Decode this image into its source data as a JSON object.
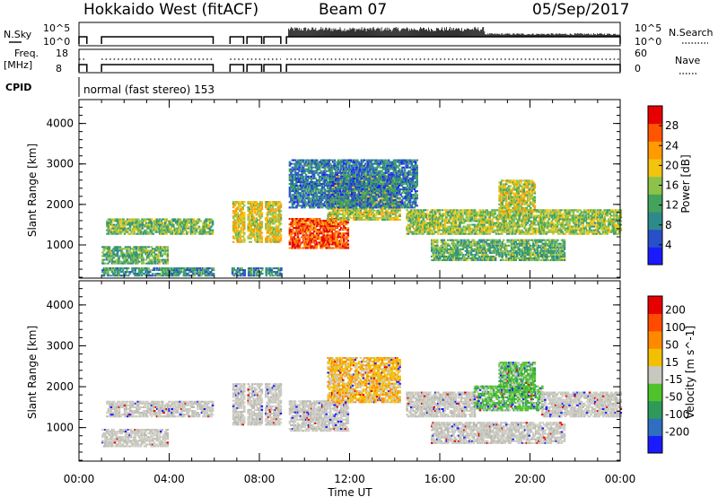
{
  "header": {
    "station": "Hokkaido West (fitACF)",
    "beam": "Beam 07",
    "date": "05/Sep/2017"
  },
  "status_panel": {
    "nsky_label": "N.Sky",
    "nsearch_label": "N.Search",
    "nsky_ticks": [
      "10^5",
      "10^0"
    ],
    "nsearch_ticks": [
      "10^5",
      "10^0"
    ],
    "freq_label": "Freq.",
    "freq_unit": "[MHz]",
    "freq_ticks": [
      "18",
      "8"
    ],
    "nave_label": "Nave",
    "nave_ticks": [
      "60",
      "0"
    ],
    "cpid_label": "CPID",
    "cpid_text": "normal (fast stereo) 153",
    "active_intervals_h": [
      [
        0.0,
        0.35
      ],
      [
        1.0,
        5.95
      ],
      [
        6.7,
        7.3
      ],
      [
        7.45,
        8.1
      ],
      [
        8.2,
        8.95
      ],
      [
        9.2,
        24.0
      ]
    ]
  },
  "chart_data": [
    {
      "type": "heatmap",
      "panel": "power",
      "ylabel": "Slant Range [km]",
      "xlabel": "Time UT",
      "x_ticks": [
        "00:00",
        "04:00",
        "08:00",
        "12:00",
        "16:00",
        "20:00",
        "00:00"
      ],
      "x_range_h": [
        0,
        24
      ],
      "y_ticks": [
        1000,
        2000,
        3000,
        4000
      ],
      "ylim": [
        180,
        4590
      ],
      "colorbar": {
        "label": "Power [dB]",
        "ticks": [
          4,
          8,
          12,
          16,
          20,
          24,
          28
        ],
        "range": [
          0,
          32
        ],
        "colors": [
          "#1a1aff",
          "#2850c8",
          "#2e8a8a",
          "#43a35a",
          "#8cc24a",
          "#f2c40f",
          "#ff9a00",
          "#ff5500",
          "#e60000"
        ]
      },
      "echo_bands": [
        {
          "t": [
            1.2,
            5.9
          ],
          "r": [
            1250,
            1650
          ],
          "level": 0.45
        },
        {
          "t": [
            0.4,
            3.9
          ],
          "r": [
            520,
            960
          ],
          "level": 0.4
        },
        {
          "t": [
            0.4,
            9.0
          ],
          "r": [
            220,
            420
          ],
          "level": 0.3
        },
        {
          "t": [
            6.8,
            8.9
          ],
          "r": [
            1050,
            2050
          ],
          "level": 0.6
        },
        {
          "t": [
            9.3,
            11.9
          ],
          "r": [
            900,
            1650
          ],
          "level": 0.85
        },
        {
          "t": [
            11.0,
            14.2
          ],
          "r": [
            1600,
            2700
          ],
          "level": 0.55
        },
        {
          "t": [
            14.5,
            24.0
          ],
          "r": [
            1250,
            1850
          ],
          "level": 0.5
        },
        {
          "t": [
            18.6,
            20.2
          ],
          "r": [
            1800,
            2600
          ],
          "level": 0.55
        },
        {
          "t": [
            15.6,
            21.5
          ],
          "r": [
            600,
            1100
          ],
          "level": 0.4
        },
        {
          "t": [
            9.3,
            15.0
          ],
          "r": [
            1900,
            3080
          ],
          "level": 0.25
        }
      ]
    },
    {
      "type": "heatmap",
      "panel": "velocity",
      "ylabel": "Slant Range [km]",
      "xlabel": "Time UT",
      "x_ticks": [
        "00:00",
        "04:00",
        "08:00",
        "12:00",
        "16:00",
        "20:00",
        "00:00"
      ],
      "x_range_h": [
        0,
        24
      ],
      "y_ticks": [
        1000,
        2000,
        3000,
        4000
      ],
      "ylim": [
        180,
        4590
      ],
      "colorbar": {
        "label": "Velocity [m s^-1]",
        "ticks": [
          200,
          100,
          50,
          15,
          -15,
          -50,
          -100,
          -200
        ],
        "colors": [
          "#1a1aff",
          "#2f6fbf",
          "#2e9a5a",
          "#4fc32a",
          "#c8c8c0",
          "#f2c000",
          "#ff8a00",
          "#ff4a00",
          "#e60000"
        ]
      },
      "echo_bands": [
        {
          "t": [
            1.2,
            5.9
          ],
          "r": [
            1250,
            1650
          ],
          "vel": "gray"
        },
        {
          "t": [
            0.4,
            3.9
          ],
          "r": [
            520,
            960
          ],
          "vel": "gray"
        },
        {
          "t": [
            6.8,
            8.9
          ],
          "r": [
            1050,
            2050
          ],
          "vel": "gray"
        },
        {
          "t": [
            9.3,
            11.9
          ],
          "r": [
            900,
            1650
          ],
          "vel": "gray"
        },
        {
          "t": [
            11.0,
            14.2
          ],
          "r": [
            1600,
            2700
          ],
          "vel": "orange"
        },
        {
          "t": [
            14.5,
            17.5
          ],
          "r": [
            1250,
            1850
          ],
          "vel": "gray"
        },
        {
          "t": [
            17.5,
            20.5
          ],
          "r": [
            1400,
            2000
          ],
          "vel": "green"
        },
        {
          "t": [
            20.5,
            24.0
          ],
          "r": [
            1250,
            1850
          ],
          "vel": "gray"
        },
        {
          "t": [
            18.6,
            20.2
          ],
          "r": [
            1800,
            2600
          ],
          "vel": "green"
        },
        {
          "t": [
            15.6,
            21.5
          ],
          "r": [
            600,
            1100
          ],
          "vel": "gray"
        }
      ]
    }
  ]
}
